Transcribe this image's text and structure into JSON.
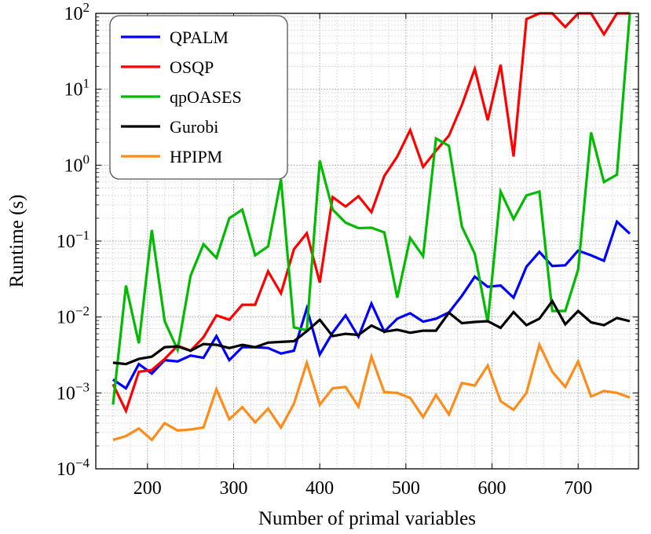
{
  "chart_data": {
    "type": "line",
    "title": "",
    "xlabel": "Number of primal variables",
    "ylabel": "Runtime (s)",
    "xlim": [
      140,
      770
    ],
    "ylim": [
      0.0001,
      100
    ],
    "y_scale": "log",
    "x_ticks": [
      200,
      300,
      400,
      500,
      600,
      700
    ],
    "y_ticks": [
      {
        "value": 0.0001,
        "base": "10",
        "exp": "−4"
      },
      {
        "value": 0.001,
        "base": "10",
        "exp": "−3"
      },
      {
        "value": 0.01,
        "base": "10",
        "exp": "−2"
      },
      {
        "value": 0.1,
        "base": "10",
        "exp": "−1"
      },
      {
        "value": 1,
        "base": "10",
        "exp": "0"
      },
      {
        "value": 10,
        "base": "10",
        "exp": "1"
      },
      {
        "value": 100,
        "base": "10",
        "exp": "2"
      }
    ],
    "grid": true,
    "legend_position": "top-left",
    "x": [
      160,
      175,
      190,
      205,
      220,
      235,
      250,
      265,
      280,
      295,
      310,
      325,
      340,
      355,
      370,
      385,
      400,
      415,
      430,
      445,
      460,
      475,
      490,
      505,
      520,
      535,
      550,
      565,
      580,
      595,
      610,
      625,
      640,
      655,
      670,
      685,
      700,
      715,
      730,
      745,
      760
    ],
    "series": [
      {
        "name": "QPALM",
        "color": "#0000ff",
        "values": [
          0.0015,
          0.00115,
          0.0024,
          0.0018,
          0.0027,
          0.0026,
          0.0031,
          0.0029,
          0.0056,
          0.0027,
          0.004,
          0.004,
          0.0039,
          0.0033,
          0.0036,
          0.013,
          0.0032,
          0.0062,
          0.0105,
          0.0055,
          0.015,
          0.0064,
          0.0095,
          0.0112,
          0.0087,
          0.0095,
          0.0115,
          0.019,
          0.034,
          0.025,
          0.026,
          0.018,
          0.046,
          0.072,
          0.047,
          0.048,
          0.075,
          0.065,
          0.055,
          0.18,
          0.125
        ]
      },
      {
        "name": "OSQP",
        "color": "#ff0000",
        "values": [
          0.0013,
          0.00058,
          0.0019,
          0.002,
          0.0028,
          0.0042,
          0.0036,
          0.0054,
          0.0105,
          0.0092,
          0.0145,
          0.0145,
          0.04,
          0.0205,
          0.078,
          0.127,
          0.0285,
          0.38,
          0.285,
          0.39,
          0.24,
          0.72,
          1.3,
          2.9,
          0.95,
          1.55,
          2.45,
          6.2,
          18.5,
          3.9,
          21,
          1.3,
          84,
          100,
          100,
          66,
          100,
          100,
          53,
          100,
          100
        ]
      },
      {
        "name": "qpOASES",
        "color": "#00bb00",
        "values": [
          0.0007,
          0.026,
          0.0045,
          0.14,
          0.0088,
          0.0037,
          0.035,
          0.091,
          0.06,
          0.2,
          0.26,
          0.065,
          0.085,
          0.65,
          0.0073,
          0.0067,
          1.15,
          0.26,
          0.175,
          0.148,
          0.15,
          0.13,
          0.018,
          0.11,
          0.063,
          2.25,
          1.8,
          0.155,
          0.068,
          0.0085,
          0.45,
          0.195,
          0.4,
          0.45,
          0.012,
          0.012,
          0.042,
          2.7,
          0.6,
          0.75,
          100
        ]
      },
      {
        "name": "Gurobi",
        "color": "#000000",
        "values": [
          0.0025,
          0.0024,
          0.0028,
          0.003,
          0.004,
          0.0041,
          0.0036,
          0.0044,
          0.0043,
          0.0039,
          0.0043,
          0.004,
          0.0046,
          0.0047,
          0.0048,
          0.0065,
          0.0092,
          0.0056,
          0.006,
          0.0058,
          0.0077,
          0.0064,
          0.0068,
          0.0062,
          0.0066,
          0.0066,
          0.0114,
          0.0083,
          0.0086,
          0.0088,
          0.0072,
          0.0116,
          0.0078,
          0.0095,
          0.0162,
          0.008,
          0.012,
          0.0085,
          0.0078,
          0.0097,
          0.0088
        ]
      },
      {
        "name": "HPIPM",
        "color": "#ff8c1a",
        "values": [
          0.00024,
          0.00027,
          0.00034,
          0.00024,
          0.0004,
          0.00032,
          0.00033,
          0.00035,
          0.00112,
          0.00045,
          0.00065,
          0.00041,
          0.00062,
          0.00035,
          0.00072,
          0.0025,
          0.0007,
          0.00115,
          0.0012,
          0.00066,
          0.003,
          0.00102,
          0.001,
          0.00086,
          0.00048,
          0.00094,
          0.00052,
          0.00135,
          0.00125,
          0.0023,
          0.00078,
          0.0006,
          0.001,
          0.0043,
          0.0019,
          0.0012,
          0.0026,
          0.0009,
          0.00106,
          0.001,
          0.00087
        ]
      }
    ]
  }
}
